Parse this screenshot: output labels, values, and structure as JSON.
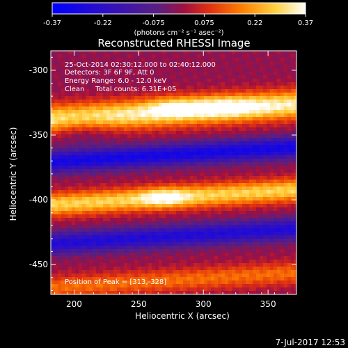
{
  "colorbar": {
    "ticks": [
      "-0.37",
      "-0.22",
      "-0.075",
      "0.075",
      "0.22",
      "0.37"
    ],
    "unit_label": "(photons cm⁻² s⁻¹ asec⁻²)",
    "range": [
      -0.37,
      0.37
    ]
  },
  "annotations": {
    "time_range": "25-Oct-2014 02:30:12.000 to 02:40:12.000",
    "detectors": "Detectors: 3F 6F 9F, Att 0",
    "energy": "Energy Range: 6.0 - 12.0 keV",
    "method": "Clean     Total counts: 6.31E+05",
    "peak": "Position of Peak = [313,-328]"
  },
  "footer": {
    "date": "7-Jul-2017 12:53"
  },
  "chart_data": {
    "type": "heatmap",
    "title": "Reconstructed RHESSI Image",
    "xlabel": "Heliocentric X (arcsec)",
    "ylabel": "Heliocentric Y (arcsec)",
    "xlim": [
      182,
      372
    ],
    "ylim": [
      -473,
      -285
    ],
    "xticks": [
      200,
      250,
      300,
      350
    ],
    "yticks": [
      -300,
      -350,
      -400,
      -450
    ],
    "peak": [
      313,
      -328
    ],
    "bands": [
      {
        "y0": -332,
        "amp": 0.34,
        "width": 11
      },
      {
        "y0": -398,
        "amp": 0.29,
        "width": 9
      },
      {
        "y0": -462,
        "amp": 0.16,
        "width": 9
      },
      {
        "y0": -365,
        "amp": -0.3,
        "width": 8
      },
      {
        "y0": -428,
        "amp": -0.26,
        "width": 8
      }
    ],
    "blobs": [
      {
        "x": 313,
        "y": -328,
        "amp": 0.12,
        "sx": 30,
        "sy": 8
      },
      {
        "x": 275,
        "y": -328,
        "amp": 0.1,
        "sx": 18,
        "sy": 7
      },
      {
        "x": 270,
        "y": -398,
        "amp": 0.14,
        "sx": 18,
        "sy": 7
      },
      {
        "x": 205,
        "y": -345,
        "amp": -0.08,
        "sx": 25,
        "sy": 12
      }
    ]
  }
}
